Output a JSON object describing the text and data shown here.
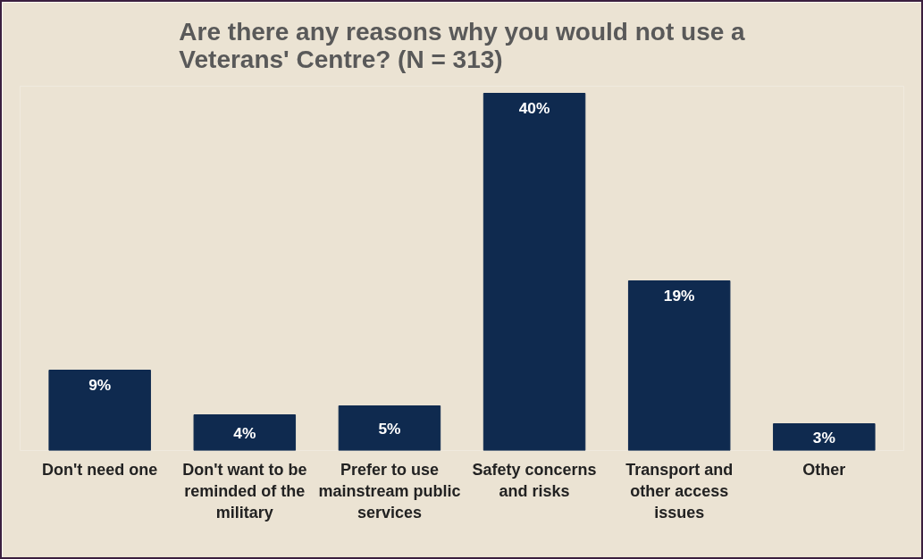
{
  "chart_data": {
    "type": "bar",
    "title": "Are there any reasons why you would not use a Veterans' Centre? (N = 313)",
    "categories": [
      "Don't need one",
      "Don't want to be reminded of the military",
      "Prefer to use mainstream public services",
      "Safety concerns and risks",
      "Transport and other access issues",
      "Other"
    ],
    "values": [
      9,
      4,
      5,
      40,
      19,
      3
    ],
    "value_labels": [
      "9%",
      "4%",
      "5%",
      "40%",
      "19%",
      "3%"
    ],
    "color": "#0f2a4f",
    "grid": false
  }
}
